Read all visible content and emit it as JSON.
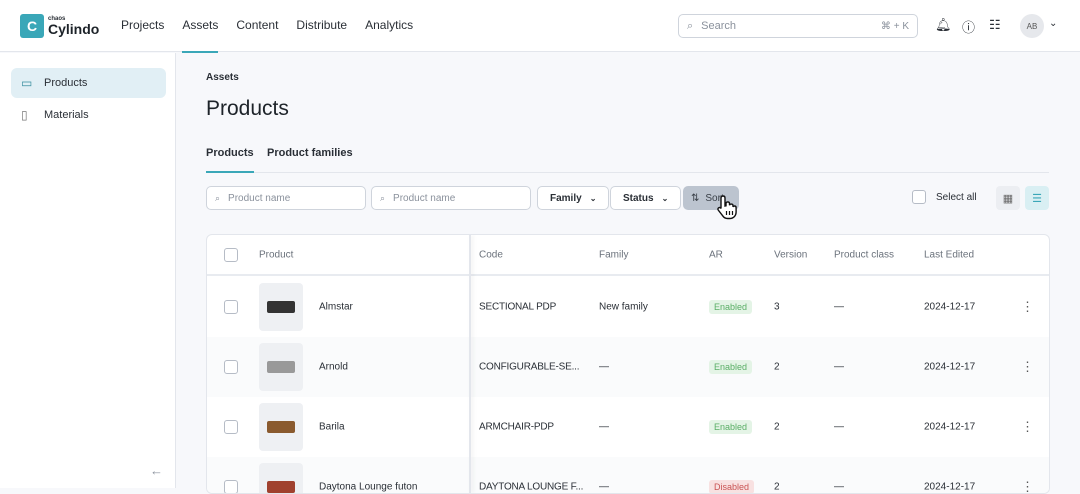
{
  "brand": {
    "small": "chaos",
    "name": "Cylindo"
  },
  "nav": [
    {
      "label": "Projects"
    },
    {
      "label": "Assets",
      "active": true
    },
    {
      "label": "Content"
    },
    {
      "label": "Distribute"
    },
    {
      "label": "Analytics"
    }
  ],
  "search": {
    "placeholder": "Search",
    "shortcut": "⌘ + K"
  },
  "user": {
    "initials": "AB"
  },
  "sidebar": {
    "items": [
      {
        "label": "Products",
        "icon": "sofa-icon",
        "active": true
      },
      {
        "label": "Materials",
        "icon": "materials-icon"
      }
    ]
  },
  "breadcrumb": "Assets",
  "page_title": "Products",
  "tabs": [
    {
      "label": "Products",
      "active": true
    },
    {
      "label": "Product families"
    }
  ],
  "filters": {
    "search1_placeholder": "Product name",
    "search2_placeholder": "Product name",
    "family": "Family",
    "status": "Status",
    "sort": "Sort",
    "select_all": "Select all"
  },
  "accent": "#3aa7b8",
  "table": {
    "columns": [
      "Product",
      "Code",
      "Family",
      "AR",
      "Version",
      "Product class",
      "Last Edited"
    ],
    "rows": [
      {
        "name": "Almstar",
        "code": "SECTIONAL PDP",
        "family": "New family",
        "ar": "Enabled",
        "version": "3",
        "class": "—",
        "edited": "2024-12-17"
      },
      {
        "name": "Arnold",
        "code": "CONFIGURABLE-SE...",
        "family": "—",
        "ar": "Enabled",
        "version": "2",
        "class": "—",
        "edited": "2024-12-17"
      },
      {
        "name": "Barila",
        "code": "ARMCHAIR-PDP",
        "family": "—",
        "ar": "Enabled",
        "version": "2",
        "class": "—",
        "edited": "2024-12-17"
      },
      {
        "name": "Daytona Lounge futon",
        "code": "DAYTONA LOUNGE F...",
        "family": "—",
        "ar": "Disabled",
        "version": "2",
        "class": "—",
        "edited": "2024-12-17"
      }
    ]
  }
}
